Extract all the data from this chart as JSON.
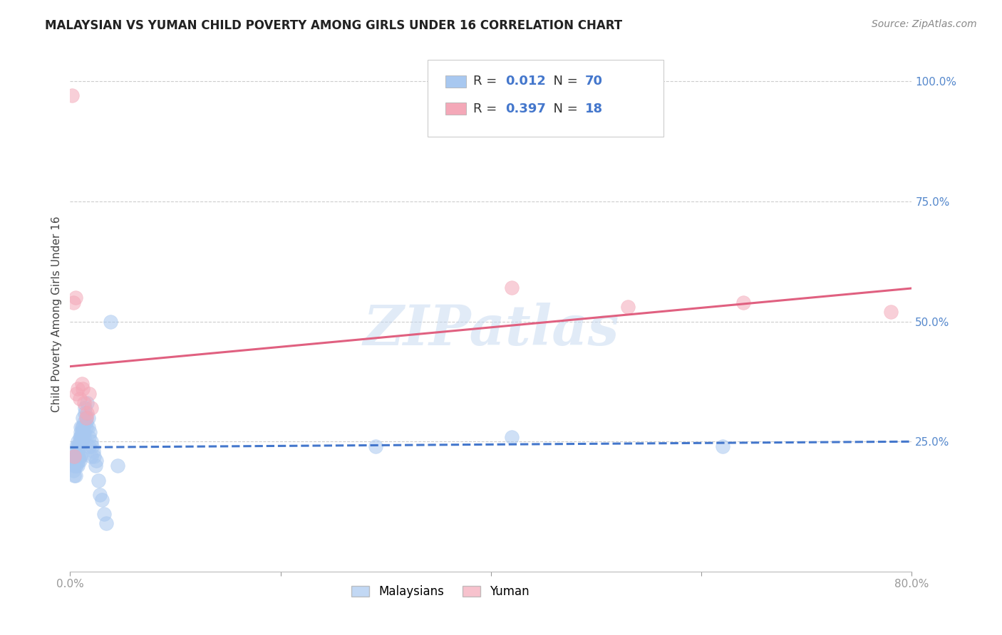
{
  "title": "MALAYSIAN VS YUMAN CHILD POVERTY AMONG GIRLS UNDER 16 CORRELATION CHART",
  "source": "Source: ZipAtlas.com",
  "ylabel": "Child Poverty Among Girls Under 16",
  "xlim": [
    0.0,
    0.8
  ],
  "ylim": [
    -0.02,
    1.05
  ],
  "ytick_positions": [
    0.25,
    0.5,
    0.75,
    1.0
  ],
  "ytick_labels_right": [
    "25.0%",
    "50.0%",
    "75.0%",
    "100.0%"
  ],
  "malaysian_R": 0.012,
  "malaysian_N": 70,
  "yuman_R": 0.397,
  "yuman_N": 18,
  "malaysian_color": "#A8C8F0",
  "yuman_color": "#F4A8B8",
  "trend_malaysian_color": "#4477CC",
  "trend_yuman_color": "#E06080",
  "background_color": "#FFFFFF",
  "grid_color": "#CCCCCC",
  "legend_text_color": "#4477CC",
  "watermark": "ZIPatlas",
  "malaysian_x": [
    0.002,
    0.003,
    0.003,
    0.004,
    0.004,
    0.004,
    0.005,
    0.005,
    0.005,
    0.005,
    0.006,
    0.006,
    0.006,
    0.006,
    0.007,
    0.007,
    0.007,
    0.007,
    0.007,
    0.008,
    0.008,
    0.008,
    0.009,
    0.009,
    0.009,
    0.009,
    0.009,
    0.01,
    0.01,
    0.01,
    0.01,
    0.01,
    0.011,
    0.011,
    0.011,
    0.011,
    0.012,
    0.012,
    0.012,
    0.013,
    0.013,
    0.013,
    0.014,
    0.014,
    0.015,
    0.015,
    0.015,
    0.016,
    0.017,
    0.017,
    0.018,
    0.018,
    0.019,
    0.02,
    0.02,
    0.021,
    0.022,
    0.023,
    0.024,
    0.025,
    0.027,
    0.028,
    0.03,
    0.032,
    0.034,
    0.038,
    0.045,
    0.29,
    0.42,
    0.62
  ],
  "malaysian_y": [
    0.21,
    0.19,
    0.22,
    0.2,
    0.23,
    0.18,
    0.21,
    0.22,
    0.2,
    0.18,
    0.22,
    0.24,
    0.21,
    0.2,
    0.25,
    0.23,
    0.22,
    0.24,
    0.2,
    0.24,
    0.22,
    0.21,
    0.25,
    0.26,
    0.24,
    0.22,
    0.21,
    0.27,
    0.26,
    0.28,
    0.24,
    0.22,
    0.28,
    0.26,
    0.25,
    0.27,
    0.3,
    0.28,
    0.27,
    0.29,
    0.27,
    0.26,
    0.32,
    0.31,
    0.3,
    0.28,
    0.29,
    0.33,
    0.28,
    0.3,
    0.26,
    0.24,
    0.27,
    0.25,
    0.22,
    0.24,
    0.23,
    0.22,
    0.2,
    0.21,
    0.17,
    0.14,
    0.13,
    0.1,
    0.08,
    0.5,
    0.2,
    0.24,
    0.26,
    0.24
  ],
  "yuman_x": [
    0.002,
    0.003,
    0.004,
    0.005,
    0.006,
    0.007,
    0.009,
    0.011,
    0.012,
    0.013,
    0.015,
    0.016,
    0.018,
    0.02,
    0.42,
    0.53,
    0.64,
    0.78
  ],
  "yuman_y": [
    0.97,
    0.54,
    0.22,
    0.55,
    0.35,
    0.36,
    0.34,
    0.37,
    0.36,
    0.33,
    0.3,
    0.31,
    0.35,
    0.32,
    0.57,
    0.53,
    0.54,
    0.52
  ]
}
